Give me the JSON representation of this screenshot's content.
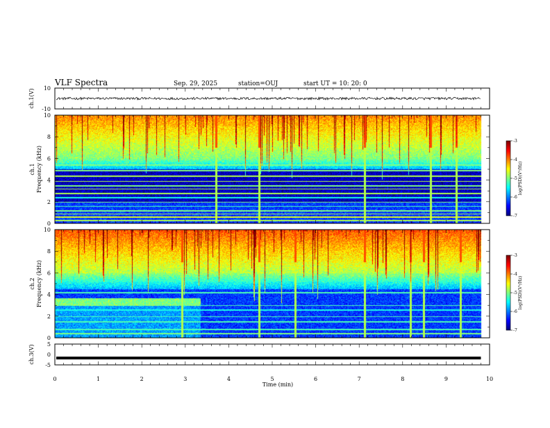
{
  "header": {
    "title": "VLF Spectra",
    "date": "Sep. 29, 2025",
    "station": "station=OUJ",
    "start": "start  UT  =   10: 20: 0"
  },
  "chart_data": [
    {
      "type": "line",
      "name": "ch1-waveform",
      "ylabel": "ch.1(V)",
      "ylim": [
        -10,
        10
      ],
      "yticks": [
        "10",
        "-10"
      ],
      "level": 0,
      "noise_amplitude": 1.2,
      "x_end_min": 9.8
    },
    {
      "type": "heatmap",
      "name": "ch1-spectrogram",
      "ylabel": "Frequency (kHz)",
      "channel_label": "ch.1",
      "xlim": [
        0,
        10
      ],
      "ylim": [
        0,
        10
      ],
      "yticks": [
        "0",
        "2",
        "4",
        "6",
        "8",
        "10"
      ],
      "x_end_min": 9.8,
      "colorbar": {
        "label": "log(PSD)(V²/Hz)",
        "ticks": [
          "-3",
          "-4",
          "-5",
          "-6",
          "-7"
        ],
        "range": [
          -7,
          -3
        ]
      }
    },
    {
      "type": "heatmap",
      "name": "ch2-spectrogram",
      "ylabel": "Frequency (kHz)",
      "channel_label": "ch.2",
      "xlim": [
        0,
        10
      ],
      "ylim": [
        0,
        10
      ],
      "yticks": [
        "0",
        "2",
        "4",
        "6",
        "8",
        "10"
      ],
      "x_end_min": 9.8,
      "colorbar": {
        "label": "log(PSD)(V²/Hz)",
        "ticks": [
          "-3",
          "-4",
          "-5",
          "-6",
          "-7"
        ],
        "range": [
          -7,
          -3
        ]
      }
    },
    {
      "type": "line",
      "name": "ch3-waveform",
      "ylabel": "ch.3(V)",
      "ylim": [
        -5,
        5
      ],
      "yticks": [
        "5",
        "0",
        "-5"
      ],
      "level": -1.7,
      "noise_amplitude": 0,
      "x_end_min": 9.8
    }
  ],
  "xaxis": {
    "label": "Time  (min)",
    "ticks": [
      "0",
      "1",
      "2",
      "3",
      "4",
      "5",
      "6",
      "7",
      "8",
      "9",
      "10"
    ],
    "xlim": [
      0,
      10
    ]
  }
}
